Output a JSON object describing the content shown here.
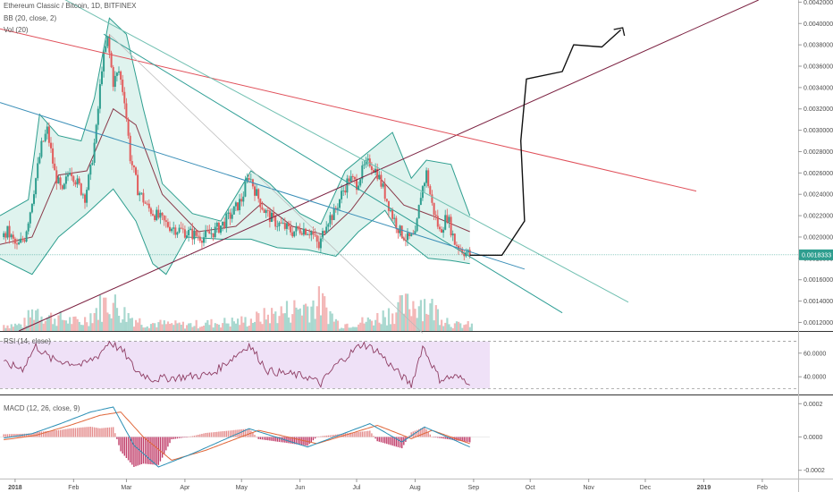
{
  "chart_data": {
    "type": "candlestick",
    "title": "Ethereum Classic / Bitcoin, 1D, BITFINEX",
    "legend": {
      "bb": "BB (20, close, 2)",
      "vol": "Vol (20)",
      "rsi": "RSI (14, close)",
      "macd": "MACD (12, 26, close, 9)"
    },
    "x_axis": {
      "range": [
        "2017-12-24",
        "2019-02-20"
      ],
      "ticks": [
        {
          "label": "2018",
          "date": "2018-01-01"
        },
        {
          "label": "Feb",
          "date": "2018-02-01"
        },
        {
          "label": "Mar",
          "date": "2018-03-01"
        },
        {
          "label": "Apr",
          "date": "2018-04-01"
        },
        {
          "label": "May",
          "date": "2018-05-01"
        },
        {
          "label": "Jun",
          "date": "2018-06-01"
        },
        {
          "label": "Jul",
          "date": "2018-07-01"
        },
        {
          "label": "Aug",
          "date": "2018-08-01"
        },
        {
          "label": "Sep",
          "date": "2018-09-01"
        },
        {
          "label": "Oct",
          "date": "2018-10-01"
        },
        {
          "label": "Nov",
          "date": "2018-11-01"
        },
        {
          "label": "Dec",
          "date": "2018-12-01"
        },
        {
          "label": "2019",
          "date": "2019-01-01"
        },
        {
          "label": "Feb",
          "date": "2019-02-01"
        }
      ]
    },
    "price_axis": {
      "range": [
        0.00112,
        0.00422
      ],
      "ticks": [
        "0.0012000",
        "0.0014000",
        "0.0016000",
        "0.0018000",
        "0.0020000",
        "0.0022000",
        "0.0024000",
        "0.0026000",
        "0.0028000",
        "0.0030000",
        "0.0032000",
        "0.0034000",
        "0.0036000",
        "0.0038000",
        "0.0040000",
        "0.0042000"
      ]
    },
    "last_price": {
      "value": 0.0018333,
      "label": "0.0018333"
    },
    "price_path": [
      [
        "2017-12-24",
        0.00195
      ],
      [
        "2017-12-28",
        0.00205
      ],
      [
        "2018-01-02",
        0.0019
      ],
      [
        "2018-01-06",
        0.002
      ],
      [
        "2018-01-09",
        0.00225
      ],
      [
        "2018-01-12",
        0.00255
      ],
      [
        "2018-01-15",
        0.00285
      ],
      [
        "2018-01-18",
        0.003
      ],
      [
        "2018-01-22",
        0.0026
      ],
      [
        "2018-01-26",
        0.0024
      ],
      [
        "2018-01-30",
        0.00265
      ],
      [
        "2018-02-03",
        0.0025
      ],
      [
        "2018-02-07",
        0.00238
      ],
      [
        "2018-02-10",
        0.00262
      ],
      [
        "2018-02-13",
        0.003
      ],
      [
        "2018-02-16",
        0.0036
      ],
      [
        "2018-02-19",
        0.00385
      ],
      [
        "2018-02-22",
        0.00345
      ],
      [
        "2018-02-25",
        0.00355
      ],
      [
        "2018-02-28",
        0.0033
      ],
      [
        "2018-03-03",
        0.00275
      ],
      [
        "2018-03-07",
        0.00245
      ],
      [
        "2018-03-12",
        0.00228
      ],
      [
        "2018-03-17",
        0.0022
      ],
      [
        "2018-03-22",
        0.00212
      ],
      [
        "2018-03-27",
        0.00208
      ],
      [
        "2018-04-01",
        0.00205
      ],
      [
        "2018-04-06",
        0.00202
      ],
      [
        "2018-04-11",
        0.002
      ],
      [
        "2018-04-16",
        0.00205
      ],
      [
        "2018-04-21",
        0.00212
      ],
      [
        "2018-04-26",
        0.00222
      ],
      [
        "2018-05-01",
        0.00235
      ],
      [
        "2018-05-05",
        0.00258
      ],
      [
        "2018-05-09",
        0.0024
      ],
      [
        "2018-05-13",
        0.00225
      ],
      [
        "2018-05-18",
        0.00215
      ],
      [
        "2018-05-23",
        0.0021
      ],
      [
        "2018-05-28",
        0.00205
      ],
      [
        "2018-06-02",
        0.00208
      ],
      [
        "2018-06-07",
        0.00205
      ],
      [
        "2018-06-11",
        0.0019
      ],
      [
        "2018-06-15",
        0.00215
      ],
      [
        "2018-06-19",
        0.00222
      ],
      [
        "2018-06-23",
        0.0024
      ],
      [
        "2018-06-27",
        0.00255
      ],
      [
        "2018-07-01",
        0.0025
      ],
      [
        "2018-07-05",
        0.00265
      ],
      [
        "2018-07-08",
        0.0027
      ],
      [
        "2018-07-12",
        0.0026
      ],
      [
        "2018-07-16",
        0.0024
      ],
      [
        "2018-07-20",
        0.0022
      ],
      [
        "2018-07-24",
        0.00205
      ],
      [
        "2018-07-28",
        0.00198
      ],
      [
        "2018-08-01",
        0.002
      ],
      [
        "2018-08-04",
        0.0024
      ],
      [
        "2018-08-07",
        0.0026
      ],
      [
        "2018-08-10",
        0.0023
      ],
      [
        "2018-08-14",
        0.00205
      ],
      [
        "2018-08-18",
        0.0022
      ],
      [
        "2018-08-22",
        0.00195
      ],
      [
        "2018-08-26",
        0.00188
      ],
      [
        "2018-08-30",
        0.00183
      ]
    ],
    "bollinger": {
      "upper": [
        [
          "2017-12-24",
          0.0022
        ],
        [
          "2018-01-08",
          0.00235
        ],
        [
          "2018-01-14",
          0.00315
        ],
        [
          "2018-01-24",
          0.00295
        ],
        [
          "2018-02-05",
          0.0029
        ],
        [
          "2018-02-12",
          0.0033
        ],
        [
          "2018-02-20",
          0.00405
        ],
        [
          "2018-03-01",
          0.0039
        ],
        [
          "2018-03-10",
          0.0032
        ],
        [
          "2018-03-20",
          0.0025
        ],
        [
          "2018-04-05",
          0.00222
        ],
        [
          "2018-04-20",
          0.00215
        ],
        [
          "2018-05-06",
          0.00262
        ],
        [
          "2018-05-16",
          0.0025
        ],
        [
          "2018-06-01",
          0.00222
        ],
        [
          "2018-06-12",
          0.00212
        ],
        [
          "2018-06-25",
          0.00262
        ],
        [
          "2018-07-06",
          0.00278
        ],
        [
          "2018-07-20",
          0.00298
        ],
        [
          "2018-07-30",
          0.00255
        ],
        [
          "2018-08-07",
          0.00272
        ],
        [
          "2018-08-20",
          0.00268
        ],
        [
          "2018-08-30",
          0.0022
        ]
      ],
      "basis": [
        [
          "2017-12-24",
          0.00193
        ],
        [
          "2018-01-10",
          0.002
        ],
        [
          "2018-01-24",
          0.00258
        ],
        [
          "2018-02-08",
          0.00262
        ],
        [
          "2018-02-22",
          0.0032
        ],
        [
          "2018-03-06",
          0.00305
        ],
        [
          "2018-03-20",
          0.0024
        ],
        [
          "2018-04-08",
          0.00205
        ],
        [
          "2018-04-28",
          0.0021
        ],
        [
          "2018-05-12",
          0.00232
        ],
        [
          "2018-05-28",
          0.0021
        ],
        [
          "2018-06-14",
          0.00202
        ],
        [
          "2018-06-28",
          0.00225
        ],
        [
          "2018-07-12",
          0.00258
        ],
        [
          "2018-07-26",
          0.0023
        ],
        [
          "2018-08-10",
          0.0022
        ],
        [
          "2018-08-30",
          0.00205
        ]
      ],
      "lower": [
        [
          "2017-12-24",
          0.0018
        ],
        [
          "2018-01-10",
          0.00165
        ],
        [
          "2018-01-24",
          0.002
        ],
        [
          "2018-02-08",
          0.00222
        ],
        [
          "2018-02-22",
          0.00245
        ],
        [
          "2018-03-06",
          0.00215
        ],
        [
          "2018-03-15",
          0.00175
        ],
        [
          "2018-03-22",
          0.00165
        ],
        [
          "2018-04-02",
          0.002
        ],
        [
          "2018-04-20",
          0.00198
        ],
        [
          "2018-05-06",
          0.00198
        ],
        [
          "2018-05-20",
          0.0019
        ],
        [
          "2018-06-05",
          0.00188
        ],
        [
          "2018-06-20",
          0.00182
        ],
        [
          "2018-07-02",
          0.00205
        ],
        [
          "2018-07-16",
          0.00225
        ],
        [
          "2018-07-26",
          0.00198
        ],
        [
          "2018-08-08",
          0.0018
        ],
        [
          "2018-08-20",
          0.00178
        ],
        [
          "2018-08-30",
          0.00175
        ]
      ]
    },
    "trendlines": [
      {
        "name": "support-line",
        "color": "#7b2040",
        "points": [
          [
            "2018-01-03",
            0.00112
          ],
          [
            "2019-01-30",
            0.00422
          ]
        ]
      },
      {
        "name": "resistance-line",
        "color": "#e0505a",
        "points": [
          [
            "2017-12-24",
            0.00395
          ],
          [
            "2018-12-28",
            0.00243
          ]
        ]
      },
      {
        "name": "channel-top-line",
        "color": "#6fbfb0",
        "points": [
          [
            "2017-12-24",
            0.00455
          ],
          [
            "2018-11-22",
            0.00139
          ]
        ]
      },
      {
        "name": "fan-line-steep",
        "color": "#2c9d94",
        "points": [
          [
            "2018-02-17",
            0.0039
          ],
          [
            "2018-10-18",
            0.00129
          ]
        ]
      },
      {
        "name": "fan-line-flat",
        "color": "#3b8fb8",
        "points": [
          [
            "2017-12-24",
            0.00326
          ],
          [
            "2018-09-28",
            0.0017
          ]
        ]
      },
      {
        "name": "thin-guide-line",
        "color": "#b8b8b8",
        "points": [
          [
            "2018-02-20",
            0.0039
          ],
          [
            "2018-08-05",
            0.0011
          ]
        ]
      }
    ],
    "projection_path": [
      [
        "2018-08-30",
        0.00183
      ],
      [
        "2018-09-16",
        0.00183
      ],
      [
        "2018-09-28",
        0.00215
      ],
      [
        "2018-09-26",
        0.0029
      ],
      [
        "2018-09-29",
        0.00348
      ],
      [
        "2018-10-18",
        0.00355
      ],
      [
        "2018-10-24",
        0.0038
      ],
      [
        "2018-11-08",
        0.00378
      ],
      [
        "2018-11-18",
        0.00394
      ]
    ],
    "projection_arrow_tip": [
      "2018-11-19",
      0.00396
    ],
    "volume": [
      [
        "2018-01-05",
        0.15
      ],
      [
        "2018-01-12",
        0.55
      ],
      [
        "2018-01-18",
        0.35
      ],
      [
        "2018-01-26",
        0.3
      ],
      [
        "2018-02-05",
        0.2
      ],
      [
        "2018-02-14",
        0.55
      ],
      [
        "2018-02-20",
        0.75
      ],
      [
        "2018-02-27",
        0.45
      ],
      [
        "2018-03-10",
        0.2
      ],
      [
        "2018-04-01",
        0.15
      ],
      [
        "2018-05-04",
        0.25
      ],
      [
        "2018-06-12",
        0.7
      ],
      [
        "2018-06-22",
        0.15
      ],
      [
        "2018-07-08",
        0.25
      ],
      [
        "2018-08-04",
        0.75
      ],
      [
        "2018-08-22",
        0.15
      ]
    ],
    "rsi": {
      "levels": [
        70,
        30
      ],
      "ticks": [
        "60.0000",
        "40.0000"
      ],
      "range": [
        25,
        78
      ],
      "values": [
        [
          "2017-12-24",
          52
        ],
        [
          "2018-01-05",
          47
        ],
        [
          "2018-01-12",
          66
        ],
        [
          "2018-01-20",
          55
        ],
        [
          "2018-01-30",
          52
        ],
        [
          "2018-02-06",
          50
        ],
        [
          "2018-02-14",
          58
        ],
        [
          "2018-02-20",
          70
        ],
        [
          "2018-02-28",
          60
        ],
        [
          "2018-03-06",
          45
        ],
        [
          "2018-03-15",
          38
        ],
        [
          "2018-04-01",
          40
        ],
        [
          "2018-04-15",
          42
        ],
        [
          "2018-05-05",
          67
        ],
        [
          "2018-05-15",
          45
        ],
        [
          "2018-06-05",
          40
        ],
        [
          "2018-06-12",
          34
        ],
        [
          "2018-06-20",
          50
        ],
        [
          "2018-07-04",
          68
        ],
        [
          "2018-07-12",
          62
        ],
        [
          "2018-07-20",
          48
        ],
        [
          "2018-07-30",
          33
        ],
        [
          "2018-08-05",
          66
        ],
        [
          "2018-08-14",
          38
        ],
        [
          "2018-08-22",
          40
        ],
        [
          "2018-08-30",
          36
        ]
      ]
    },
    "macd": {
      "ticks": [
        "0.0002",
        "0.0000",
        "-0.0002"
      ],
      "range": [
        -0.00025,
        0.00025
      ],
      "macd_line": [
        [
          "2017-12-24",
          -1e-05
        ],
        [
          "2018-01-10",
          2e-05
        ],
        [
          "2018-01-25",
          8e-05
        ],
        [
          "2018-02-10",
          0.00015
        ],
        [
          "2018-02-22",
          0.00018
        ],
        [
          "2018-03-05",
          -5e-05
        ],
        [
          "2018-03-18",
          -0.00018
        ],
        [
          "2018-04-05",
          -0.0001
        ],
        [
          "2018-05-05",
          5e-05
        ],
        [
          "2018-06-05",
          -6e-05
        ],
        [
          "2018-07-08",
          8e-05
        ],
        [
          "2018-07-25",
          -3e-05
        ],
        [
          "2018-08-06",
          6e-05
        ],
        [
          "2018-08-30",
          -6e-05
        ]
      ],
      "signal_line": [
        [
          "2017-12-24",
          -2e-05
        ],
        [
          "2018-01-12",
          1e-05
        ],
        [
          "2018-01-30",
          7e-05
        ],
        [
          "2018-02-15",
          0.00013
        ],
        [
          "2018-02-26",
          0.00015
        ],
        [
          "2018-03-10",
          0.0
        ],
        [
          "2018-03-25",
          -0.00014
        ],
        [
          "2018-04-12",
          -8e-05
        ],
        [
          "2018-05-10",
          4e-05
        ],
        [
          "2018-06-10",
          -4e-05
        ],
        [
          "2018-07-12",
          7e-05
        ],
        [
          "2018-07-30",
          -1e-05
        ],
        [
          "2018-08-10",
          4e-05
        ],
        [
          "2018-08-30",
          -4e-05
        ]
      ]
    },
    "colors": {
      "up": "#2e9e8f",
      "down": "#e25d5d",
      "bb_fill": "#dff3ee",
      "rsi_fill": "#efe1f7",
      "rsi_line": "#8e3d63",
      "basis": "#8a3a4a",
      "macd": "#2a8fb5",
      "signal": "#e0673a"
    }
  }
}
